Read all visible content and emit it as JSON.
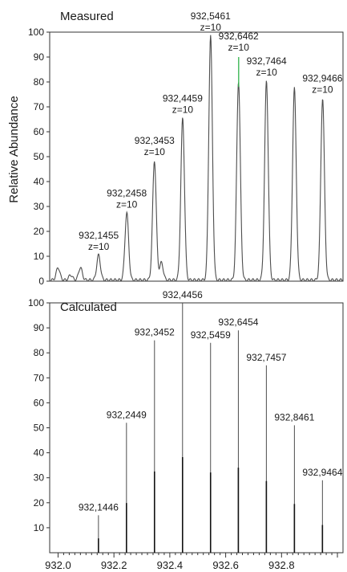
{
  "chart_data": [
    {
      "type": "line",
      "panel": "top",
      "title": "Measured",
      "ylabel": "Relative Abundance",
      "xlabel": "",
      "xlim": [
        931.97,
        933.02
      ],
      "ylim": [
        0,
        100
      ],
      "yticks": [
        0,
        10,
        20,
        30,
        40,
        50,
        60,
        70,
        80,
        90,
        100
      ],
      "grid": false,
      "peaks": [
        {
          "x": 932.0,
          "y": 5
        },
        {
          "x": 932.045,
          "y": 2
        },
        {
          "x": 932.08,
          "y": 5
        },
        {
          "x": 932.145,
          "y": 10
        },
        {
          "x": 932.246,
          "y": 27
        },
        {
          "x": 932.345,
          "y": 48
        },
        {
          "x": 932.37,
          "y": 7
        },
        {
          "x": 932.446,
          "y": 65
        },
        {
          "x": 932.546,
          "y": 98
        },
        {
          "x": 932.646,
          "y": 80
        },
        {
          "x": 932.6465,
          "y": 90
        },
        {
          "x": 932.746,
          "y": 80
        },
        {
          "x": 932.846,
          "y": 77
        },
        {
          "x": 932.947,
          "y": 73
        }
      ],
      "annotations": [
        {
          "mz": "932,1455",
          "z": "z=10",
          "x": 932.1455,
          "y": 10
        },
        {
          "mz": "932,2458",
          "z": "z=10",
          "x": 932.2458,
          "y": 27
        },
        {
          "mz": "932,3453",
          "z": "z=10",
          "x": 932.3453,
          "y": 48
        },
        {
          "mz": "932,4459",
          "z": "z=10",
          "x": 932.4459,
          "y": 65
        },
        {
          "mz": "932,5461",
          "z": "z=10",
          "x": 932.5461,
          "y": 98
        },
        {
          "mz": "932,6462",
          "z": "z=10",
          "x": 932.6462,
          "y": 90
        },
        {
          "mz": "932,7464",
          "z": "z=10",
          "x": 932.7464,
          "y": 80
        },
        {
          "mz": "932,9466",
          "z": "z=10",
          "x": 932.9466,
          "y": 73
        }
      ]
    },
    {
      "type": "bar",
      "panel": "bottom",
      "title": "Calculated",
      "ylabel": "Relative Abundance",
      "xlabel": "",
      "xlim": [
        931.97,
        933.02
      ],
      "ylim": [
        0,
        100
      ],
      "yticks": [
        10,
        20,
        30,
        40,
        50,
        60,
        70,
        80,
        90,
        100
      ],
      "xticks": [
        "932.0",
        "932.2",
        "932.4",
        "932.6",
        "932.8"
      ],
      "grid": false,
      "sticks": [
        {
          "label": "932,1446",
          "x": 932.1446,
          "y": 15
        },
        {
          "label": "932,2449",
          "x": 932.2449,
          "y": 52
        },
        {
          "label": "932,3452",
          "x": 932.3452,
          "y": 85
        },
        {
          "label": "932,4456",
          "x": 932.4456,
          "y": 100
        },
        {
          "label": "932,5459",
          "x": 932.5459,
          "y": 84
        },
        {
          "label": "932,6454",
          "x": 932.6454,
          "y": 89
        },
        {
          "label": "932,7457",
          "x": 932.7457,
          "y": 75
        },
        {
          "label": "932,8461",
          "x": 932.8461,
          "y": 51
        },
        {
          "label": "932,9464",
          "x": 932.9464,
          "y": 29
        }
      ]
    }
  ],
  "colors": {
    "trace": "#4d4d4d",
    "highlight": "#2fb24a",
    "axis": "#333333"
  }
}
